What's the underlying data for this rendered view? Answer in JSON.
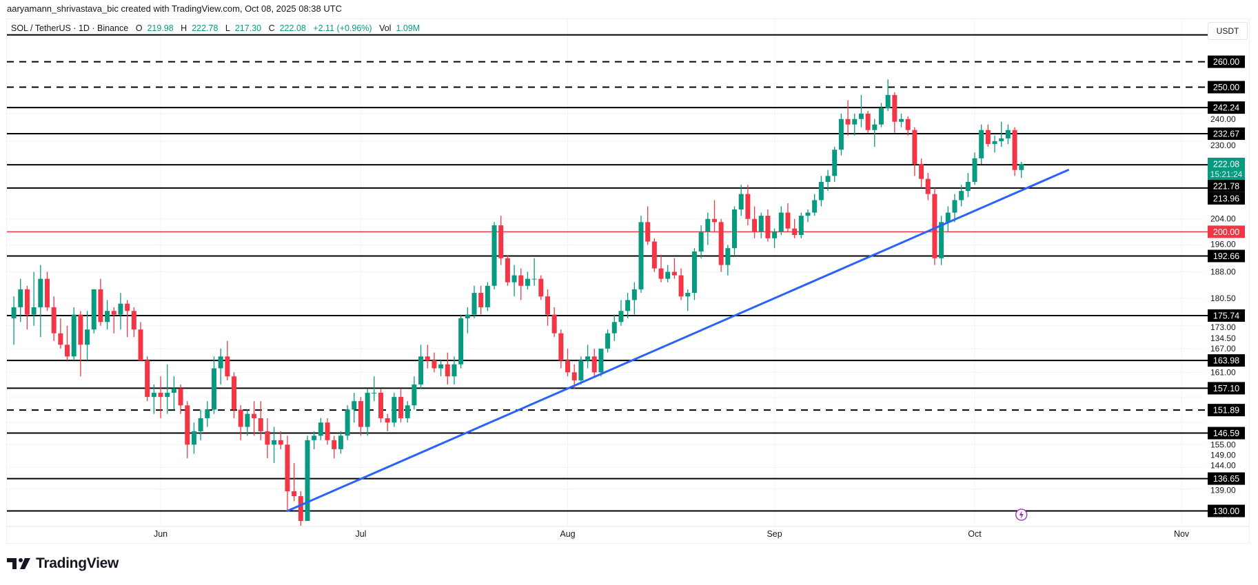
{
  "header": {
    "credit": "aaryamann_shrivastava_bic created with TradingView.com, Oct 08, 2025 08:38 UTC"
  },
  "legend": {
    "symbol": "SOL / TetherUS · 1D · Binance",
    "open_label": "O",
    "open": "219.98",
    "high_label": "H",
    "high": "222.78",
    "low_label": "L",
    "low": "217.30",
    "close_label": "C",
    "close": "222.08",
    "change": "+2.11 (+0.96%)",
    "vol_label": "Vol",
    "vol": "1.09M"
  },
  "price_axis": {
    "currency": "USDT"
  },
  "brand": {
    "name": "TradingView",
    "logo_icon": "tradingview-logo"
  },
  "colors": {
    "up": "#089981",
    "down": "#f23645",
    "trendline": "#2962ff",
    "level": "#000000",
    "key_level": "#f23645",
    "event": "#9c27b0"
  },
  "chart_data": {
    "type": "candlestick",
    "title": "SOL / TetherUS · 1D · Binance",
    "scale": "log",
    "ylim": [
      126,
      271
    ],
    "xlim": [
      "2025-05-10",
      "2025-11-10"
    ],
    "grid": true,
    "x_ticks": [
      {
        "date": "2025-06-01",
        "label": "Jun"
      },
      {
        "date": "2025-07-01",
        "label": "Jul"
      },
      {
        "date": "2025-08-01",
        "label": "Aug"
      },
      {
        "date": "2025-09-01",
        "label": "Sep"
      },
      {
        "date": "2025-10-01",
        "label": "Oct"
      },
      {
        "date": "2025-11-01",
        "label": "Nov"
      }
    ],
    "y_ticks": [
      "240.00",
      "230.00",
      "204.00",
      "196.00",
      "188.00",
      "180.50",
      "173.00",
      "167.00",
      "161.00",
      "155.00",
      "149.00",
      "144.00",
      "139.00",
      "134.50"
    ],
    "levels": [
      {
        "price": 271,
        "label": "",
        "style": "solid"
      },
      {
        "price": 260,
        "label": "260.00",
        "style": "dashed"
      },
      {
        "price": 250,
        "label": "250.00",
        "style": "dashed"
      },
      {
        "price": 242.24,
        "label": "242.24",
        "style": "solid"
      },
      {
        "price": 232.67,
        "label": "232.67",
        "style": "solid"
      },
      {
        "price": 221.78,
        "label": "221.78",
        "style": "solid"
      },
      {
        "price": 213.96,
        "label": "213.96",
        "style": "solid"
      },
      {
        "price": 200,
        "label": "200.00",
        "style": "red"
      },
      {
        "price": 192.66,
        "label": "192.66",
        "style": "solid"
      },
      {
        "price": 175.74,
        "label": "175.74",
        "style": "solid"
      },
      {
        "price": 163.98,
        "label": "163.98",
        "style": "solid"
      },
      {
        "price": 157.1,
        "label": "157.10",
        "style": "solid"
      },
      {
        "price": 151.89,
        "label": "151.89",
        "style": "dashed"
      },
      {
        "price": 146.59,
        "label": "146.59",
        "style": "solid"
      },
      {
        "price": 136.65,
        "label": "136.65",
        "style": "solid"
      },
      {
        "price": 130,
        "label": "130.00",
        "style": "solid"
      }
    ],
    "last_price": {
      "price": 222.08,
      "label": "222.08",
      "countdown": "15:21:24"
    },
    "trendline": {
      "from": {
        "date": "2025-06-20",
        "price": 130
      },
      "to": {
        "date": "2025-10-15",
        "price": 220
      }
    },
    "event_marker": {
      "date": "2025-10-08",
      "icon": "lightning-icon"
    },
    "first_date": "2025-05-10",
    "candles_ohlc": [
      [
        175,
        181,
        168,
        178
      ],
      [
        178,
        186,
        174,
        183
      ],
      [
        183,
        184,
        172,
        176
      ],
      [
        176,
        188,
        173,
        178
      ],
      [
        178,
        190,
        170,
        186
      ],
      [
        186,
        188,
        177,
        178
      ],
      [
        178,
        181,
        169,
        171
      ],
      [
        171,
        175,
        167,
        168
      ],
      [
        168,
        173,
        164,
        165
      ],
      [
        165,
        178,
        164,
        176
      ],
      [
        176,
        177,
        160,
        168
      ],
      [
        168,
        177,
        164,
        172
      ],
      [
        172,
        183,
        171,
        183
      ],
      [
        183,
        186,
        173,
        174
      ],
      [
        174,
        180,
        172,
        177
      ],
      [
        177,
        178,
        171,
        176
      ],
      [
        176,
        182,
        172,
        179
      ],
      [
        179,
        180,
        170,
        177
      ],
      [
        177,
        178,
        170,
        172
      ],
      [
        172,
        174,
        164,
        164
      ],
      [
        164,
        165,
        154,
        155
      ],
      [
        155,
        158,
        151,
        156
      ],
      [
        156,
        160,
        150,
        155
      ],
      [
        155,
        163,
        151,
        156
      ],
      [
        156,
        160,
        152,
        157
      ],
      [
        157,
        158,
        151,
        153
      ],
      [
        153,
        154,
        141,
        144
      ],
      [
        144,
        149,
        142,
        147
      ],
      [
        147,
        152,
        145,
        150
      ],
      [
        150,
        154,
        148,
        152
      ],
      [
        152,
        165,
        151,
        162
      ],
      [
        162,
        167,
        158,
        165
      ],
      [
        165,
        169,
        159,
        160
      ],
      [
        160,
        161,
        150,
        152
      ],
      [
        152,
        153,
        145,
        148
      ],
      [
        148,
        152,
        146,
        151
      ],
      [
        151,
        154,
        146,
        150
      ],
      [
        150,
        154,
        145,
        147
      ],
      [
        147,
        150,
        141,
        144
      ],
      [
        144,
        148,
        140,
        145
      ],
      [
        145,
        147,
        143,
        144
      ],
      [
        144,
        146,
        130,
        134
      ],
      [
        134,
        140,
        132,
        133
      ],
      [
        133,
        134,
        126,
        128
      ],
      [
        128,
        146,
        128,
        145
      ],
      [
        145,
        147,
        143,
        146
      ],
      [
        146,
        150,
        145,
        149
      ],
      [
        149,
        150,
        144,
        145
      ],
      [
        145,
        146,
        141,
        143
      ],
      [
        143,
        147,
        142,
        146
      ],
      [
        146,
        153,
        145,
        152
      ],
      [
        152,
        156,
        149,
        154
      ],
      [
        154,
        155,
        146,
        148
      ],
      [
        148,
        157,
        146,
        156
      ],
      [
        156,
        160,
        154,
        156
      ],
      [
        156,
        157,
        149,
        150
      ],
      [
        150,
        151,
        147,
        149
      ],
      [
        149,
        156,
        148,
        155
      ],
      [
        155,
        157,
        149,
        150
      ],
      [
        150,
        154,
        149,
        153
      ],
      [
        153,
        160,
        152,
        158
      ],
      [
        158,
        168,
        157,
        165
      ],
      [
        165,
        168,
        162,
        164
      ],
      [
        164,
        166,
        161,
        162
      ],
      [
        162,
        164,
        160,
        163
      ],
      [
        163,
        166,
        158,
        160
      ],
      [
        160,
        165,
        158,
        163
      ],
      [
        163,
        176,
        162,
        175
      ],
      [
        175,
        178,
        171,
        176
      ],
      [
        176,
        184,
        175,
        182
      ],
      [
        182,
        184,
        176,
        178
      ],
      [
        178,
        185,
        177,
        184
      ],
      [
        184,
        203,
        183,
        202
      ],
      [
        202,
        205,
        190,
        192
      ],
      [
        192,
        193,
        184,
        185
      ],
      [
        185,
        190,
        181,
        187
      ],
      [
        187,
        189,
        180,
        184
      ],
      [
        184,
        188,
        183,
        186
      ],
      [
        186,
        192,
        184,
        186
      ],
      [
        186,
        187,
        180,
        181
      ],
      [
        181,
        183,
        173,
        176
      ],
      [
        176,
        178,
        170,
        171
      ],
      [
        171,
        172,
        162,
        164
      ],
      [
        164,
        167,
        160,
        161
      ],
      [
        161,
        163,
        157,
        159
      ],
      [
        159,
        165,
        158,
        164
      ],
      [
        164,
        168,
        162,
        165
      ],
      [
        165,
        167,
        160,
        161
      ],
      [
        161,
        167,
        160,
        167
      ],
      [
        167,
        172,
        166,
        171
      ],
      [
        171,
        176,
        169,
        174
      ],
      [
        174,
        180,
        173,
        177
      ],
      [
        177,
        182,
        175,
        180
      ],
      [
        180,
        185,
        176,
        183
      ],
      [
        183,
        205,
        182,
        203
      ],
      [
        203,
        208,
        196,
        197
      ],
      [
        197,
        198,
        188,
        189
      ],
      [
        189,
        193,
        185,
        186
      ],
      [
        186,
        190,
        185,
        188
      ],
      [
        188,
        192,
        186,
        187
      ],
      [
        187,
        189,
        180,
        181
      ],
      [
        181,
        183,
        177,
        182
      ],
      [
        182,
        195,
        180,
        194
      ],
      [
        194,
        202,
        192,
        200
      ],
      [
        200,
        206,
        196,
        204
      ],
      [
        204,
        210,
        200,
        203
      ],
      [
        203,
        204,
        188,
        190
      ],
      [
        190,
        196,
        187,
        195
      ],
      [
        195,
        208,
        193,
        207
      ],
      [
        207,
        215,
        205,
        212
      ],
      [
        212,
        215,
        202,
        204
      ],
      [
        204,
        208,
        198,
        200
      ],
      [
        200,
        206,
        198,
        205
      ],
      [
        205,
        207,
        197,
        198
      ],
      [
        198,
        201,
        195,
        200
      ],
      [
        200,
        208,
        199,
        206
      ],
      [
        206,
        209,
        200,
        201
      ],
      [
        201,
        204,
        198,
        199
      ],
      [
        199,
        206,
        198,
        205
      ],
      [
        205,
        207,
        203,
        206
      ],
      [
        206,
        212,
        205,
        210
      ],
      [
        210,
        218,
        208,
        216
      ],
      [
        216,
        220,
        213,
        218
      ],
      [
        218,
        228,
        216,
        227
      ],
      [
        227,
        240,
        225,
        238
      ],
      [
        238,
        245,
        232,
        236
      ],
      [
        236,
        240,
        232,
        238
      ],
      [
        238,
        247,
        235,
        240
      ],
      [
        240,
        241,
        233,
        234
      ],
      [
        234,
        238,
        228,
        236
      ],
      [
        236,
        244,
        235,
        242
      ],
      [
        242,
        253,
        241,
        247
      ],
      [
        247,
        248,
        233,
        237
      ],
      [
        237,
        240,
        235,
        238
      ],
      [
        238,
        239,
        232,
        234
      ],
      [
        234,
        235,
        218,
        222
      ],
      [
        222,
        224,
        214,
        217
      ],
      [
        217,
        219,
        210,
        212
      ],
      [
        212,
        214,
        190,
        192
      ],
      [
        192,
        205,
        190,
        203
      ],
      [
        203,
        208,
        200,
        206
      ],
      [
        206,
        212,
        203,
        210
      ],
      [
        210,
        215,
        208,
        213
      ],
      [
        213,
        219,
        211,
        216
      ],
      [
        216,
        226,
        215,
        224
      ],
      [
        224,
        236,
        222,
        234
      ],
      [
        234,
        236,
        228,
        229
      ],
      [
        229,
        232,
        226,
        230
      ],
      [
        230,
        237,
        228,
        231
      ],
      [
        231,
        236,
        229,
        234
      ],
      [
        234,
        235,
        218,
        220
      ],
      [
        219.98,
        222.78,
        217.3,
        222.08
      ]
    ]
  }
}
